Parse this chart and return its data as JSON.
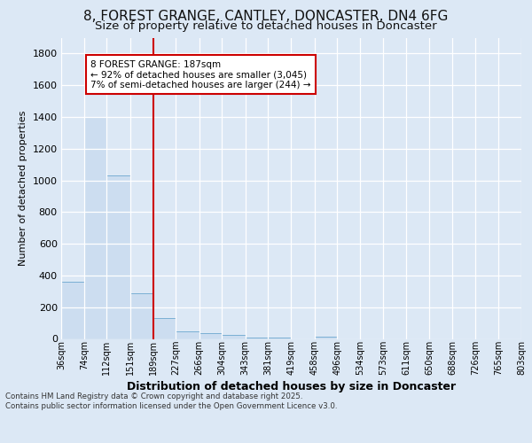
{
  "title_line1": "8, FOREST GRANGE, CANTLEY, DONCASTER, DN4 6FG",
  "title_line2": "Size of property relative to detached houses in Doncaster",
  "xlabel": "Distribution of detached houses by size in Doncaster",
  "ylabel": "Number of detached properties",
  "footer_line1": "Contains HM Land Registry data © Crown copyright and database right 2025.",
  "footer_line2": "Contains public sector information licensed under the Open Government Licence v3.0.",
  "annotation_line1": "8 FOREST GRANGE: 187sqm",
  "annotation_line2": "← 92% of detached houses are smaller (3,045)",
  "annotation_line3": "7% of semi-detached houses are larger (244) →",
  "bin_edges": [
    36,
    74,
    112,
    151,
    189,
    227,
    266,
    304,
    343,
    381,
    419,
    458,
    496,
    534,
    573,
    611,
    650,
    688,
    726,
    765,
    803
  ],
  "bin_labels": [
    "36sqm",
    "74sqm",
    "112sqm",
    "151sqm",
    "189sqm",
    "227sqm",
    "266sqm",
    "304sqm",
    "343sqm",
    "381sqm",
    "419sqm",
    "458sqm",
    "496sqm",
    "534sqm",
    "573sqm",
    "611sqm",
    "650sqm",
    "688sqm",
    "726sqm",
    "765sqm",
    "803sqm"
  ],
  "counts": [
    360,
    1400,
    1030,
    290,
    130,
    45,
    35,
    25,
    10,
    8,
    0,
    15,
    0,
    0,
    0,
    0,
    0,
    0,
    0,
    0
  ],
  "bar_color": "#ccddf0",
  "bar_edgecolor": "#7aafd4",
  "vline_color": "#cc0000",
  "vline_x": 189,
  "ylim": [
    0,
    1900
  ],
  "yticks": [
    0,
    200,
    400,
    600,
    800,
    1000,
    1200,
    1400,
    1600,
    1800
  ],
  "background_color": "#dce8f5",
  "plot_background": "#dce8f5",
  "grid_color": "#ffffff",
  "annotation_box_edgecolor": "#cc0000",
  "annotation_box_facecolor": "#ffffff",
  "title1_fontsize": 11,
  "title2_fontsize": 9.5
}
